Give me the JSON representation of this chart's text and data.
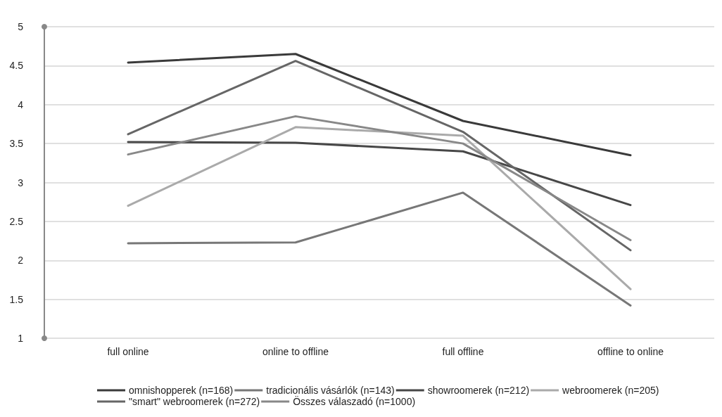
{
  "chart_data": {
    "type": "line",
    "categories": [
      "full online",
      "online to offline",
      "full offline",
      "offline to online"
    ],
    "ylim": [
      1,
      5
    ],
    "yticks": [
      1,
      1.5,
      2,
      2.5,
      3,
      3.5,
      4,
      4.5,
      5
    ],
    "grid": "y",
    "legend": "bottom",
    "marker": "none",
    "line_style": "solid",
    "series": [
      {
        "name": "omnishopperek (n=168)",
        "color": "#3a3a3a",
        "values": [
          4.54,
          4.65,
          3.79,
          3.35
        ]
      },
      {
        "name": "tradicionális vásárlók (n=143)",
        "color": "#777777",
        "values": [
          2.22,
          2.23,
          2.87,
          1.42
        ]
      },
      {
        "name": "showroomerek (n=212)",
        "color": "#474747",
        "values": [
          3.52,
          3.51,
          3.4,
          2.71
        ]
      },
      {
        "name": "webroomerek (n=205)",
        "color": "#aaaaaa",
        "values": [
          2.7,
          3.71,
          3.6,
          1.63
        ]
      },
      {
        "name": "\"smart\" webroomerek (n=272)",
        "color": "#666666",
        "values": [
          3.62,
          4.56,
          3.65,
          2.13
        ]
      },
      {
        "name": "Összes válaszadó (n=1000)",
        "color": "#888888",
        "values": [
          3.36,
          3.85,
          3.5,
          2.26
        ]
      }
    ]
  }
}
